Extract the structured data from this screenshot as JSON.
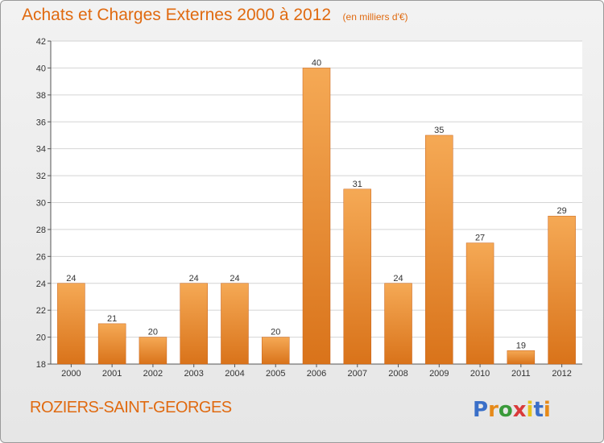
{
  "header": {
    "title": "Achats et Charges Externes 2000 à 2012",
    "subtitle": "(en milliers d'€)"
  },
  "footer": {
    "commune": "ROZIERS-SAINT-GEORGES",
    "logo_text": "Proxiti"
  },
  "colors": {
    "accent": "#e06a10",
    "bar_top": "#f5a955",
    "bar_bottom": "#d9731a",
    "logo_letters": [
      "#3a6fc8",
      "#e68a1a",
      "#3a9a3a",
      "#d93a3a",
      "#e6c21a",
      "#3a6fc8",
      "#e68a1a"
    ]
  },
  "chart_data": {
    "type": "bar",
    "title": "Achats et Charges Externes 2000 à 2012",
    "subtitle": "(en milliers d'€)",
    "xlabel": "",
    "ylabel": "",
    "categories": [
      "2000",
      "2001",
      "2002",
      "2003",
      "2004",
      "2005",
      "2006",
      "2007",
      "2008",
      "2009",
      "2010",
      "2011",
      "2012"
    ],
    "values": [
      24,
      21,
      20,
      24,
      24,
      20,
      40,
      31,
      24,
      35,
      27,
      19,
      29
    ],
    "ylim": [
      18,
      42
    ],
    "yticks": [
      18,
      20,
      22,
      24,
      26,
      28,
      30,
      32,
      34,
      36,
      38,
      40,
      42
    ],
    "grid": true,
    "legend": "none"
  }
}
